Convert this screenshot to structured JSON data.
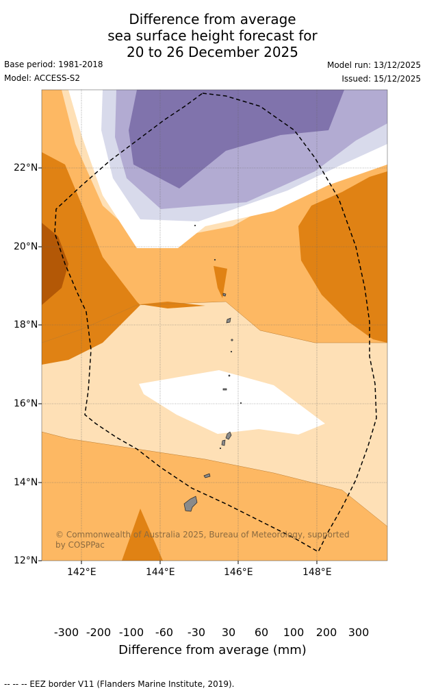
{
  "title": {
    "line1": "Difference from average",
    "line2": "sea surface height forecast for",
    "line3": "20 to 26 December 2025"
  },
  "meta": {
    "base_period": "Base period: 1981-2018",
    "model": "Model: ACCESS-S2",
    "model_run": "Model run: 13/12/2025",
    "issued": "Issued: 15/12/2025"
  },
  "axes": {
    "lat_ticks": [
      "22°N",
      "20°N",
      "18°N",
      "16°N",
      "14°N",
      "12°N"
    ],
    "lon_ticks": [
      "142°E",
      "144°E",
      "146°E",
      "148°E"
    ]
  },
  "copyright": {
    "line1": "© Commonwealth of Australia 2025, Bureau of Meteorology, supported",
    "line2": "by COSPPac"
  },
  "colorbar": {
    "labels": [
      "-300",
      "-200",
      "-100",
      "-60",
      "-30",
      "30",
      "60",
      "100",
      "200",
      "300"
    ],
    "colors": [
      "#2d0a4e",
      "#542788",
      "#8073ac",
      "#b2abd2",
      "#d8daeb",
      "#ffffff",
      "#fee0b6",
      "#fdb863",
      "#e08214",
      "#b35806",
      "#7f3b08"
    ],
    "title": "Difference from average (mm)"
  },
  "footer": {
    "legend": "--  --  -- EEZ border V11 (Flanders Marine Institute, 2019)."
  }
}
